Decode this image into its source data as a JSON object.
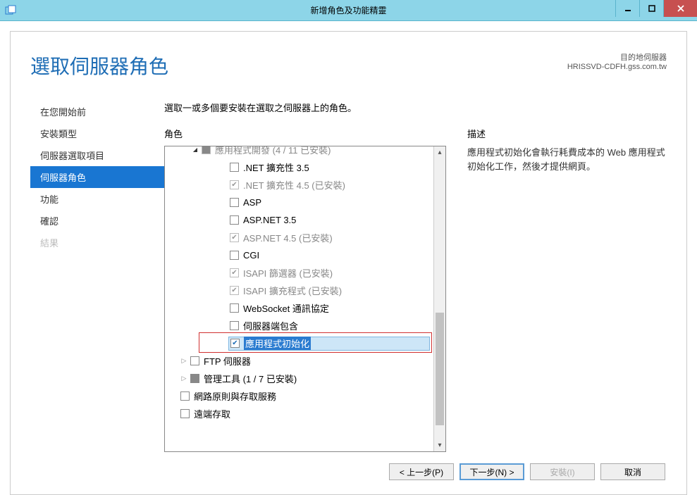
{
  "window": {
    "title": "新增角色及功能精靈"
  },
  "header": {
    "page_title": "選取伺服器角色",
    "dest_label": "目的地伺服器",
    "dest_server": "HRISSVD-CDFH.gss.com.tw"
  },
  "nav": {
    "items": [
      {
        "label": "在您開始前",
        "state": "normal"
      },
      {
        "label": "安裝類型",
        "state": "normal"
      },
      {
        "label": "伺服器選取項目",
        "state": "normal"
      },
      {
        "label": "伺服器角色",
        "state": "active"
      },
      {
        "label": "功能",
        "state": "normal"
      },
      {
        "label": "確認",
        "state": "normal"
      },
      {
        "label": "結果",
        "state": "disabled"
      }
    ]
  },
  "main": {
    "instruction": "選取一或多個要安裝在選取之伺服器上的角色。",
    "roles_heading": "角色",
    "desc_heading": "描述",
    "desc_text": "應用程式初始化會執行耗費成本的 Web 應用程式初始化工作，然後才提供網頁。"
  },
  "tree": {
    "rows": [
      {
        "indent": 30,
        "expander": "▾",
        "cb": "mixed",
        "label": "應用程式開發 (4 / 11 已安裝)",
        "disabled": true,
        "truncated": true
      },
      {
        "indent": 70,
        "cb": "empty",
        "label": ".NET 擴充性 3.5"
      },
      {
        "indent": 70,
        "cb": "checked",
        "label": ".NET 擴充性 4.5 (已安裝)",
        "disabled": true
      },
      {
        "indent": 70,
        "cb": "empty",
        "label": "ASP"
      },
      {
        "indent": 70,
        "cb": "empty",
        "label": "ASP.NET 3.5"
      },
      {
        "indent": 70,
        "cb": "checked",
        "label": "ASP.NET 4.5 (已安裝)",
        "disabled": true
      },
      {
        "indent": 70,
        "cb": "empty",
        "label": "CGI"
      },
      {
        "indent": 70,
        "cb": "checked",
        "label": "ISAPI 篩選器 (已安裝)",
        "disabled": true
      },
      {
        "indent": 70,
        "cb": "checked",
        "label": "ISAPI 擴充程式 (已安裝)",
        "disabled": true
      },
      {
        "indent": 70,
        "cb": "empty",
        "label": "WebSocket 通訊協定"
      },
      {
        "indent": 70,
        "cb": "empty",
        "label": "伺服器端包含"
      },
      {
        "indent": 70,
        "cb": "checked",
        "label": "應用程式初始化",
        "selected": true,
        "highlighted": true
      },
      {
        "indent": 14,
        "expander": "▸",
        "cb": "empty",
        "label": "FTP 伺服器"
      },
      {
        "indent": 14,
        "expander": "▸",
        "cb": "mixed",
        "label": "管理工具 (1 / 7 已安裝)"
      },
      {
        "indent": 0,
        "cb": "empty",
        "label": "網路原則與存取服務"
      },
      {
        "indent": 0,
        "cb": "empty",
        "label": "遠端存取",
        "truncated_bottom": true
      }
    ],
    "scrollbar": {
      "thumb_top_pct": 55,
      "thumb_height_pct": 40
    }
  },
  "footer": {
    "prev": "< 上一步(P)",
    "next": "下一步(N) >",
    "install": "安裝(I)",
    "cancel": "取消"
  },
  "colors": {
    "titlebar_bg": "#8dd5e8",
    "close_bg": "#c75050",
    "accent": "#1976d2",
    "heading": "#1e6db5",
    "highlight_border": "#d03030",
    "selection_bg": "#cde6f7",
    "selection_label_bg": "#2a7bd0"
  }
}
